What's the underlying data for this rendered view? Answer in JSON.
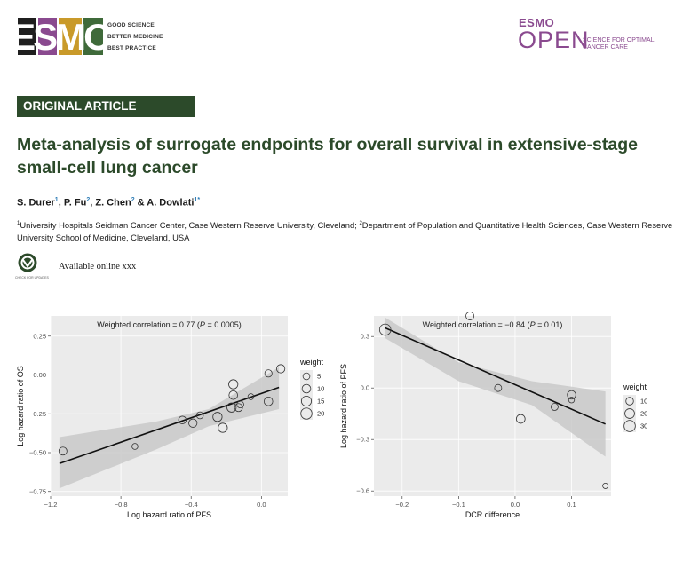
{
  "header": {
    "logo_text": "ESMO",
    "tagline": [
      "GOOD SCIENCE",
      "BETTER MEDICINE",
      "BEST PRACTICE"
    ],
    "journal_small": "ESMO",
    "journal_big": "OPEN",
    "journal_tagline": [
      "SCIENCE FOR OPTIMAL",
      "CANCER CARE"
    ]
  },
  "article": {
    "type": "ORIGINAL ARTICLE",
    "title": "Meta-analysis of surrogate endpoints for overall survival in extensive-stage small-cell lung cancer",
    "authors": [
      {
        "name": "S. Durer",
        "sup": "1",
        "sep": ", "
      },
      {
        "name": "P. Fu",
        "sup": "2",
        "sep": ", "
      },
      {
        "name": "Z. Chen",
        "sup": "2",
        "sep": " & "
      },
      {
        "name": "A. Dowlati",
        "sup": "1*",
        "sep": ""
      }
    ],
    "affiliations": [
      {
        "sup": "1",
        "text": "University Hospitals Seidman Cancer Center, Case Western Reserve University, Cleveland; "
      },
      {
        "sup": "2",
        "text": "Department of Population and Quantitative Health Sciences, Case Western Reserve University School of Medicine, Cleveland, USA"
      }
    ],
    "check_label": "CHECK FOR UPDATES",
    "available": "Available online xxx"
  },
  "colors": {
    "brand_green": "#2c4a2a",
    "open_purple": "#8a4a8f",
    "panel_bg": "#ebebeb",
    "ribbon": "#c9c9c9"
  },
  "chart_data": [
    {
      "type": "scatter",
      "annotation_prefix": "Weighted correlation = 0.77 (",
      "annotation_p": "P",
      "annotation_suffix": " = 0.0005)",
      "xlabel": "Log hazard ratio of PFS",
      "ylabel": "Log hazard ratio of OS",
      "xlim": [
        -1.2,
        0.15
      ],
      "ylim": [
        -0.78,
        0.38
      ],
      "xticks": [
        -1.2,
        -0.8,
        -0.4,
        0.0
      ],
      "xtick_labels": [
        "−1.2",
        "−0.8",
        "−0.4",
        "0.0"
      ],
      "yticks": [
        0.25,
        0.0,
        -0.25,
        -0.5,
        -0.75
      ],
      "ytick_labels": [
        "0.25",
        "0.00",
        "−0.25",
        "−0.50",
        "−0.75"
      ],
      "fit": {
        "x": [
          -1.15,
          0.1
        ],
        "y": [
          -0.57,
          -0.08
        ]
      },
      "band": {
        "x": [
          -1.15,
          -0.6,
          -0.3,
          0.1
        ],
        "upper": [
          -0.4,
          -0.3,
          -0.22,
          0.05
        ],
        "lower": [
          -0.73,
          -0.48,
          -0.33,
          -0.22
        ]
      },
      "points": [
        {
          "x": -1.13,
          "y": -0.49,
          "w": 8
        },
        {
          "x": -0.72,
          "y": -0.46,
          "w": 3
        },
        {
          "x": -0.45,
          "y": -0.29,
          "w": 7
        },
        {
          "x": -0.39,
          "y": -0.31,
          "w": 9
        },
        {
          "x": -0.35,
          "y": -0.26,
          "w": 5
        },
        {
          "x": -0.25,
          "y": -0.27,
          "w": 12
        },
        {
          "x": -0.22,
          "y": -0.34,
          "w": 12
        },
        {
          "x": -0.17,
          "y": -0.21,
          "w": 12
        },
        {
          "x": -0.16,
          "y": -0.13,
          "w": 10
        },
        {
          "x": -0.16,
          "y": -0.06,
          "w": 12
        },
        {
          "x": -0.13,
          "y": -0.21,
          "w": 8
        },
        {
          "x": -0.12,
          "y": -0.19,
          "w": 5
        },
        {
          "x": -0.06,
          "y": -0.14,
          "w": 3
        },
        {
          "x": 0.04,
          "y": 0.01,
          "w": 6
        },
        {
          "x": 0.04,
          "y": -0.17,
          "w": 10
        },
        {
          "x": 0.11,
          "y": 0.04,
          "w": 9
        }
      ],
      "legend": {
        "title": "weight",
        "labels": [
          "5",
          "10",
          "15",
          "20"
        ],
        "values": [
          5,
          10,
          15,
          20
        ],
        "position": "right"
      },
      "wmax": 22
    },
    {
      "type": "scatter",
      "annotation_prefix": "Weighted correlation = −0.84 (",
      "annotation_p": "P",
      "annotation_suffix": " = 0.01)",
      "xlabel": "DCR difference",
      "ylabel": "Log hazard ratio of PFS",
      "xlim": [
        -0.25,
        0.17
      ],
      "ylim": [
        -0.63,
        0.42
      ],
      "xticks": [
        -0.2,
        -0.1,
        0.0,
        0.1
      ],
      "xtick_labels": [
        "−0.2",
        "−0.1",
        "0.0",
        "0.1"
      ],
      "yticks": [
        0.3,
        0.0,
        -0.3,
        -0.6
      ],
      "ytick_labels": [
        "0.3",
        "0.0",
        "−0.3",
        "−0.6"
      ],
      "fit": {
        "x": [
          -0.23,
          0.16
        ],
        "y": [
          0.35,
          -0.21
        ]
      },
      "band": {
        "x": [
          -0.23,
          -0.1,
          0.03,
          0.16
        ],
        "upper": [
          0.41,
          0.15,
          0.04,
          -0.02
        ],
        "lower": [
          0.29,
          0.04,
          -0.1,
          -0.4
        ]
      },
      "points": [
        {
          "x": -0.23,
          "y": 0.34,
          "w": 30
        },
        {
          "x": -0.08,
          "y": 0.42,
          "w": 12
        },
        {
          "x": -0.03,
          "y": 0.0,
          "w": 8
        },
        {
          "x": 0.01,
          "y": -0.18,
          "w": 15
        },
        {
          "x": 0.07,
          "y": -0.11,
          "w": 8
        },
        {
          "x": 0.1,
          "y": -0.04,
          "w": 14
        },
        {
          "x": 0.1,
          "y": -0.07,
          "w": 4
        },
        {
          "x": 0.16,
          "y": -0.57,
          "w": 3
        }
      ],
      "legend": {
        "title": "weight",
        "labels": [
          "10",
          "20",
          "30"
        ],
        "values": [
          10,
          20,
          30
        ],
        "position": "right"
      },
      "wmax": 32
    }
  ]
}
